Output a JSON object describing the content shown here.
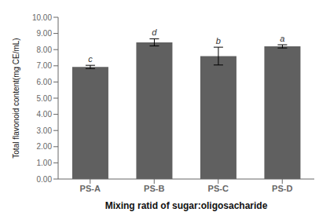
{
  "chart_data": {
    "type": "bar",
    "categories": [
      "PS-A",
      "PS-B",
      "PS-C",
      "PS-D"
    ],
    "values": [
      6.93,
      8.45,
      7.6,
      8.2
    ],
    "errors": [
      0.1,
      0.22,
      0.55,
      0.1
    ],
    "annotations": [
      "c",
      "d",
      "b",
      "a"
    ],
    "color": "#606060",
    "xlabel": "Mixing ratid of sugar:oligosacharide",
    "ylabel": "Total flavonoid content(mg CE/mL)",
    "ylim": [
      0,
      10.0
    ],
    "yticks": [
      {
        "value": 0,
        "label": "0.00"
      },
      {
        "value": 1,
        "label": "1.00"
      },
      {
        "value": 2,
        "label": "2.00"
      },
      {
        "value": 3,
        "label": "3.00"
      },
      {
        "value": 4,
        "label": "4.00"
      },
      {
        "value": 5,
        "label": "5.00"
      },
      {
        "value": 6,
        "label": "6.00"
      },
      {
        "value": 7,
        "label": "7.00"
      },
      {
        "value": 8,
        "label": "8.00"
      },
      {
        "value": 9,
        "label": "9.00"
      },
      {
        "value": 10,
        "label": "10.00"
      }
    ],
    "grid": false
  }
}
